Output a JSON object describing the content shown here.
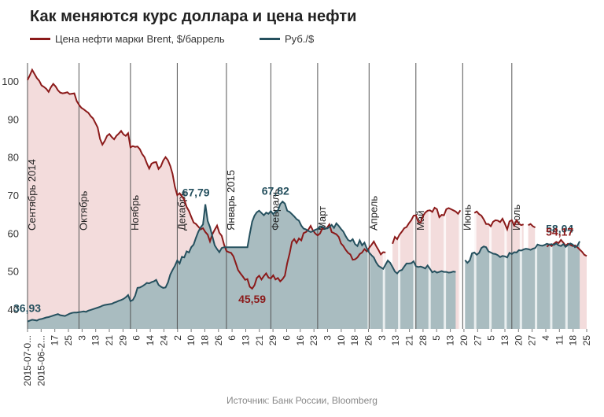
{
  "title": "Как меняются курс доллара и цена нефти",
  "legend": {
    "oil_label": "Цена нефти марки Brent, $/баррель",
    "rub_label": "Руб./$"
  },
  "source": "Источник: Банк России, Bloomberg",
  "colors": {
    "oil": "#8b1a1a",
    "oil_fill": "#f3dcdc",
    "rub": "#25505e",
    "rub_fill": "#a9bcc0",
    "month_line": "#555555"
  },
  "chart_data": {
    "type": "line",
    "title": "Как меняются курс доллара и цена нефти",
    "ylim": [
      35,
      105
    ],
    "yticks": [
      40,
      50,
      60,
      70,
      80,
      90,
      100
    ],
    "x_tick_labels": [
      "2015-07-0...",
      "2015-06-2...",
      "17",
      "25",
      "3",
      "13",
      "21",
      "29",
      "6",
      "14",
      "24",
      "2",
      "10",
      "18",
      "26",
      "6",
      "13",
      "21",
      "29",
      "6",
      "16",
      "23",
      "3",
      "10",
      "18",
      "26",
      "3",
      "13",
      "21",
      "28",
      "5",
      "13",
      "20",
      "27",
      "5",
      "13",
      "20",
      "27",
      "4",
      "11",
      "18",
      "25"
    ],
    "month_markers": [
      {
        "label": "Сентябрь 2014",
        "index": 0
      },
      {
        "label": "Октябрь",
        "index": 22
      },
      {
        "label": "Ноябрь",
        "index": 44
      },
      {
        "label": "Декабрь",
        "index": 64
      },
      {
        "label": "Январь 2015",
        "index": 85
      },
      {
        "label": "Февраль",
        "index": 104
      },
      {
        "label": "Март",
        "index": 124
      },
      {
        "label": "Апрель",
        "index": 146
      },
      {
        "label": "Май",
        "index": 166
      },
      {
        "label": "Июнь",
        "index": 186
      },
      {
        "label": "Июль",
        "index": 207
      }
    ],
    "series": [
      {
        "name": "Цена нефти марки Brent, $/баррель",
        "values": [
          100.5,
          101.8,
          103.2,
          102.1,
          101.0,
          100.3,
          99.1,
          98.7,
          98.2,
          97.4,
          98.6,
          99.5,
          98.8,
          97.8,
          97.2,
          97.0,
          97.1,
          97.3,
          96.8,
          96.9,
          97.0,
          95.0,
          94.0,
          93.2,
          92.8,
          92.3,
          91.9,
          91.0,
          90.4,
          89.2,
          88.0,
          85.0,
          83.5,
          84.5,
          85.8,
          86.3,
          85.5,
          84.9,
          85.8,
          86.4,
          87.1,
          86.2,
          85.8,
          86.5,
          82.8,
          83.1,
          82.9,
          83.0,
          82.3,
          81.0,
          80.2,
          78.6,
          77.2,
          78.5,
          78.8,
          78.9,
          77.1,
          77.8,
          79.3,
          80.2,
          79.4,
          77.9,
          75.8,
          72.4,
          70.2,
          70.7,
          69.9,
          69.0,
          67.1,
          66.0,
          64.5,
          63.0,
          62.6,
          61.9,
          61.2,
          61.5,
          60.5,
          59.8,
          58.0,
          59.9,
          61.1,
          62.2,
          60.3,
          59.5,
          57.2,
          55.5,
          55.2,
          55.0,
          54.1,
          52.3,
          50.5,
          49.6,
          48.8,
          47.9,
          48.1,
          46.1,
          45.59,
          46.5,
          48.4,
          49.0,
          48.0,
          48.9,
          49.6,
          48.5,
          48.3,
          49.1,
          48.0,
          48.4,
          47.5,
          48.1,
          49.0,
          52.3,
          54.8,
          57.9,
          58.6,
          57.6,
          58.8,
          58.3,
          60.2,
          60.5,
          61.1,
          62.1,
          60.9,
          60.1,
          59.6,
          60.1,
          61.4,
          61.5,
          61.6,
          62.5,
          60.5,
          60.2,
          59.9,
          59.2,
          57.5,
          56.8,
          55.8,
          55.0,
          54.6,
          53.2,
          53.3,
          53.8,
          54.7,
          55.1,
          56.0,
          55.4,
          56.3,
          57.1,
          58.0,
          56.8,
          55.8,
          54.6,
          55.2,
          55.1,
          null,
          null,
          57.4,
          59.2,
          58.6,
          59.8,
          60.6,
          61.5,
          61.8,
          62.8,
          63.6,
          64.8,
          64.9,
          63.2,
          63.0,
          64.7,
          65.6,
          66.1,
          66.2,
          65.8,
          66.9,
          66.5,
          64.4,
          65.0,
          64.9,
          66.5,
          66.8,
          66.5,
          66.2,
          65.9,
          65.3,
          66.2,
          null,
          65.3,
          null,
          null,
          null,
          65.5,
          65.9,
          65.2,
          64.8,
          63.8,
          62.6,
          62.6,
          62.0,
          63.2,
          63.6,
          63.5,
          63.1,
          64.0,
          62.7,
          61.2,
          63.3,
          63.6,
          62.2,
          63.6,
          62.7,
          62.3,
          62.5,
          null,
          62.3,
          62.6,
          62.0,
          61.7,
          null,
          63.4,
          null,
          null,
          56.6,
          57.2,
          56.8,
          57.4,
          57.9,
          57.6,
          58.4,
          57.7,
          56.9,
          57.4,
          57.1,
          56.8,
          57.0,
          56.5,
          55.9,
          55.3,
          54.5,
          54.17
        ]
      },
      {
        "name": "Руб./$",
        "values": [
          36.93,
          37.2,
          37.4,
          37.3,
          37.2,
          37.5,
          37.6,
          37.8,
          38.0,
          38.1,
          38.3,
          38.5,
          38.7,
          38.9,
          38.6,
          38.5,
          38.4,
          38.7,
          39.0,
          39.2,
          39.3,
          39.3,
          39.4,
          39.5,
          39.6,
          39.5,
          39.8,
          40.0,
          40.2,
          40.4,
          40.6,
          40.8,
          41.1,
          41.3,
          41.4,
          41.5,
          41.6,
          41.9,
          42.1,
          42.4,
          42.6,
          42.9,
          43.3,
          43.9,
          42.3,
          42.6,
          43.7,
          45.8,
          45.9,
          46.2,
          46.6,
          47.1,
          47.0,
          47.3,
          47.5,
          47.9,
          46.6,
          46.1,
          45.8,
          45.9,
          47.2,
          49.3,
          50.5,
          51.6,
          53.0,
          52.2,
          54.0,
          53.8,
          55.4,
          55.1,
          56.5,
          57.2,
          59.0,
          60.6,
          61.7,
          62.5,
          67.79,
          63.4,
          61.8,
          59.4,
          57.0,
          56.0,
          55.2,
          56.3,
          56.5,
          56.5,
          56.5,
          56.5,
          56.5,
          56.5,
          56.5,
          56.5,
          56.5,
          56.5,
          56.5,
          60.0,
          63.2,
          64.8,
          65.7,
          66.1,
          65.5,
          64.9,
          65.6,
          65.3,
          66.0,
          65.2,
          65.9,
          66.1,
          67.82,
          68.5,
          68.0,
          66.1,
          65.8,
          65.2,
          64.6,
          63.9,
          63.5,
          62.2,
          61.4,
          61.2,
          60.8,
          60.5,
          60.7,
          61.1,
          61.3,
          62.0,
          61.9,
          61.5,
          61.4,
          61.8,
          62.4,
          61.6,
          62.8,
          62.1,
          61.3,
          60.6,
          59.4,
          58.4,
          58.1,
          58.6,
          57.3,
          56.8,
          58.3,
          57.0,
          57.7,
          56.2,
          55.1,
          54.4,
          53.8,
          52.5,
          51.6,
          51.2,
          50.8,
          51.9,
          53.0,
          52.4,
          51.3,
          50.1,
          49.6,
          50.3,
          50.5,
          51.4,
          52.2,
          52.2,
          52.3,
          52.8,
          51.5,
          51.3,
          51.4,
          51.2,
          50.9,
          51.7,
          50.8,
          49.9,
          50.2,
          49.8,
          50.0,
          50.2,
          50.0,
          50.0,
          49.8,
          49.9,
          50.1,
          50.0,
          null,
          null,
          null,
          53.1,
          52.4,
          53.0,
          54.9,
          55.1,
          54.5,
          55.0,
          56.3,
          56.7,
          56.5,
          55.4,
          55.1,
          54.8,
          54.7,
          54.4,
          53.9,
          54.2,
          54.1,
          53.8,
          55.0,
          54.7,
          55.2,
          55.1,
          55.7,
          55.6,
          55.9,
          56.1,
          56.0,
          55.8,
          56.1,
          56.3,
          57.2,
          57.0,
          56.9,
          57.1,
          57.4,
          57.2,
          57.3,
          57.1,
          57.5,
          57.0,
          56.8,
          57.3,
          56.6,
          57.1,
          57.5,
          57.2,
          56.5,
          56.9,
          58.04
        ]
      }
    ],
    "annotations": [
      {
        "text": "36,93",
        "series": "rub",
        "index": 0
      },
      {
        "text": "67,79",
        "series": "rub",
        "index": 76
      },
      {
        "text": "67,82",
        "series": "rub",
        "index": 108
      },
      {
        "text": "45,59",
        "series": "oil",
        "index": 96
      },
      {
        "text": "58,04",
        "series": "rub",
        "index": 232
      },
      {
        "text": "54,17",
        "series": "oil",
        "index": 232
      }
    ],
    "grid": false,
    "legend_position": "top-left"
  }
}
